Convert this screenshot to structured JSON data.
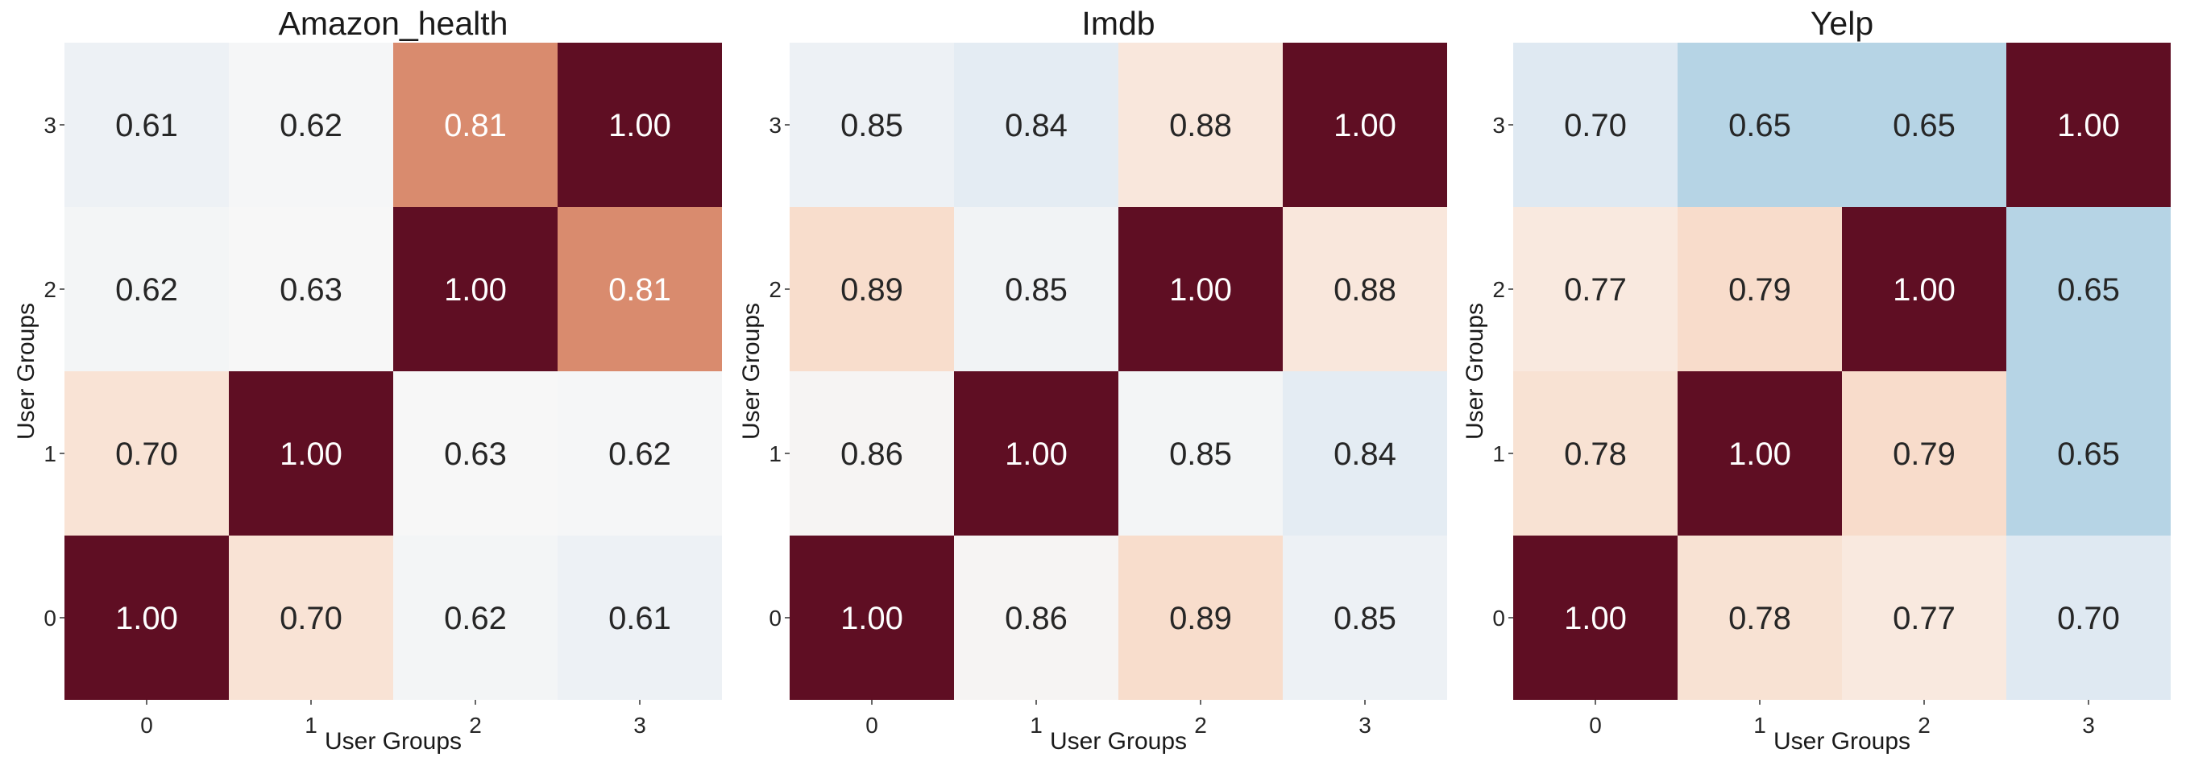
{
  "chart_data": [
    {
      "type": "heatmap",
      "title": "Amazon_health",
      "xlabel": "User Groups",
      "ylabel": "User Groups",
      "x_ticks": [
        "0",
        "1",
        "2",
        "3"
      ],
      "y_ticks": [
        "3",
        "2",
        "1",
        "0"
      ],
      "values": [
        [
          0.61,
          0.62,
          0.81,
          1.0
        ],
        [
          0.62,
          0.63,
          1.0,
          0.81
        ],
        [
          0.7,
          1.0,
          0.63,
          0.62
        ],
        [
          1.0,
          0.7,
          0.62,
          0.61
        ]
      ],
      "grid": false,
      "colormap": "diverging blue-white-red"
    },
    {
      "type": "heatmap",
      "title": "Imdb",
      "xlabel": "User Groups",
      "ylabel": "User Groups",
      "x_ticks": [
        "0",
        "1",
        "2",
        "3"
      ],
      "y_ticks": [
        "3",
        "2",
        "1",
        "0"
      ],
      "values": [
        [
          0.85,
          0.84,
          0.88,
          1.0
        ],
        [
          0.89,
          0.85,
          1.0,
          0.88
        ],
        [
          0.86,
          1.0,
          0.85,
          0.84
        ],
        [
          1.0,
          0.86,
          0.89,
          0.85
        ]
      ],
      "grid": false,
      "colormap": "diverging blue-white-red"
    },
    {
      "type": "heatmap",
      "title": "Yelp",
      "xlabel": "User Groups",
      "ylabel": "User Groups",
      "x_ticks": [
        "0",
        "1",
        "2",
        "3"
      ],
      "y_ticks": [
        "3",
        "2",
        "1",
        "0"
      ],
      "values": [
        [
          0.7,
          0.65,
          0.65,
          1.0
        ],
        [
          0.77,
          0.79,
          1.0,
          0.65
        ],
        [
          0.78,
          1.0,
          0.79,
          0.65
        ],
        [
          1.0,
          0.78,
          0.77,
          0.7
        ]
      ],
      "grid": false,
      "colormap": "diverging blue-white-red"
    }
  ],
  "cell_colors": {
    "Amazon_health": [
      [
        "#edf1f5",
        "#f5f6f7",
        "#d98b6e",
        "#5f0e23"
      ],
      [
        "#f3f5f6",
        "#f7f7f7",
        "#5f0e23",
        "#d98b6e"
      ],
      [
        "#f9e3d5",
        "#5f0e23",
        "#f7f7f7",
        "#f5f6f7"
      ],
      [
        "#5f0e23",
        "#f9e3d5",
        "#f3f5f6",
        "#edf1f5"
      ]
    ],
    "Imdb": [
      [
        "#edf1f5",
        "#e4ecf3",
        "#f9e7dc",
        "#5f0e23"
      ],
      [
        "#f8ddcc",
        "#f1f3f5",
        "#5f0e23",
        "#f9e7dc"
      ],
      [
        "#f6f4f3",
        "#5f0e23",
        "#f3f5f6",
        "#e4ecf3"
      ],
      [
        "#5f0e23",
        "#f6f4f3",
        "#f8ddcc",
        "#edf1f5"
      ]
    ],
    "Yelp": [
      [
        "#dfe9f2",
        "#b6d4e5",
        "#b6d4e5",
        "#5f0e23"
      ],
      [
        "#f9e9df",
        "#f8dccb",
        "#5f0e23",
        "#b6d4e5"
      ],
      [
        "#f8e2d3",
        "#5f0e23",
        "#f8dccb",
        "#b6d4e5"
      ],
      [
        "#5f0e23",
        "#f8e2d3",
        "#f9e9df",
        "#dfe9f2"
      ]
    ]
  },
  "text_colors": {
    "dark": "#262626",
    "light": "#ffffff"
  }
}
